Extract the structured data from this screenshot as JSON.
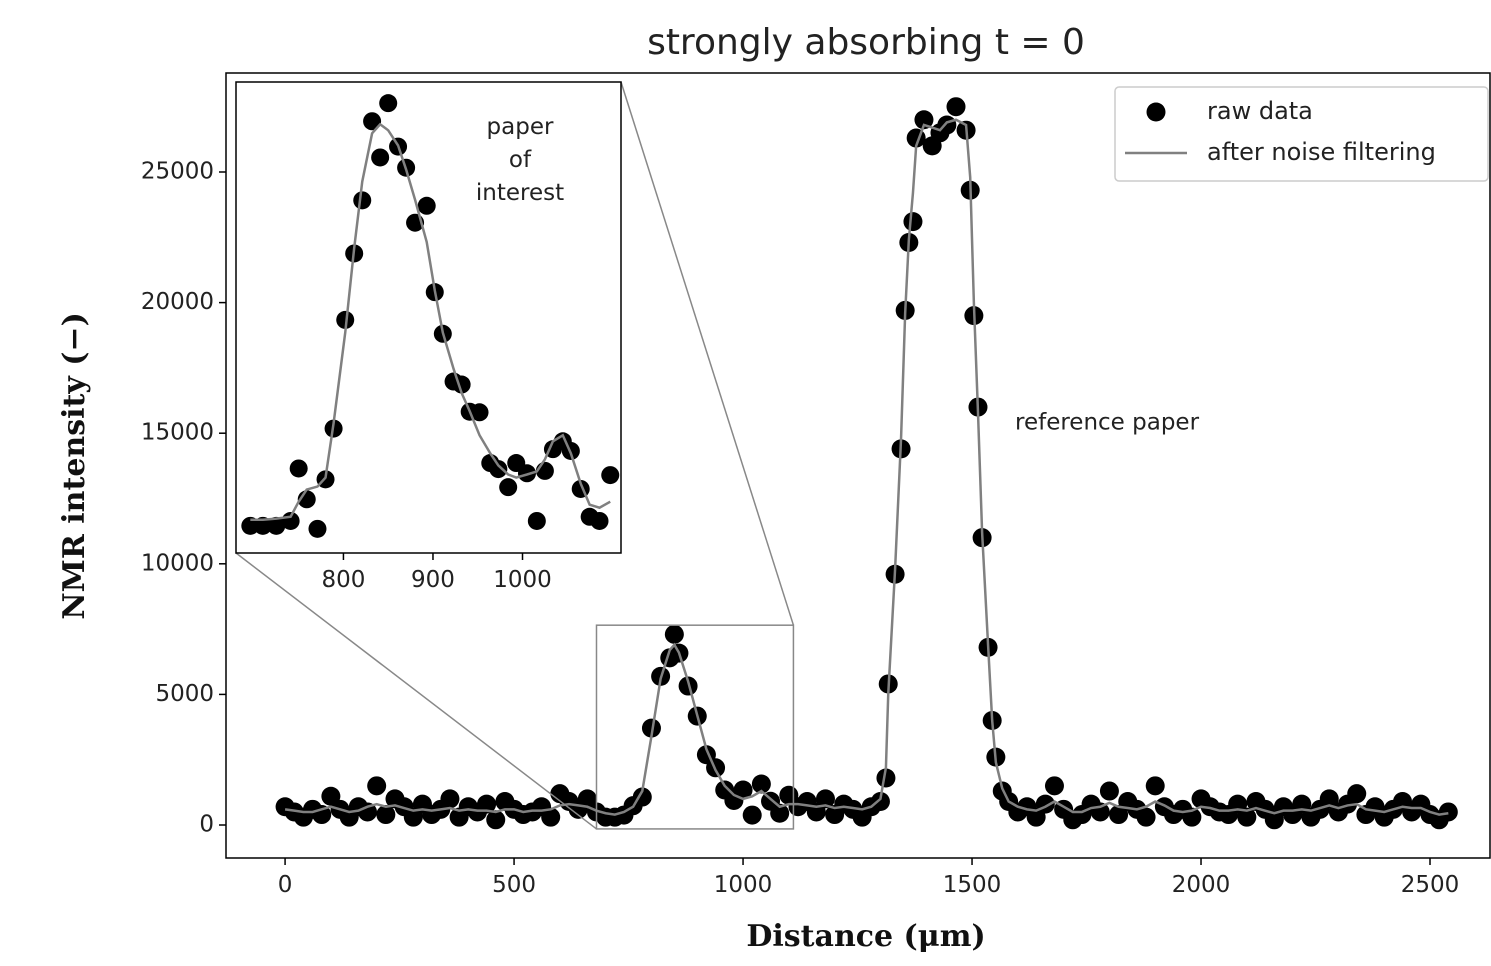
{
  "chart_data": [
    {
      "type": "scatter",
      "title": "strongly absorbing t = 0",
      "x_label": "Distance (μm)",
      "y_label": "NMR intensity (−)",
      "annotation": "reference paper",
      "legend": "upper right",
      "xlim": [
        -129,
        2631
      ],
      "ylim": [
        -1263,
        28790
      ],
      "xticks": [
        0,
        500,
        1000,
        1500,
        2000,
        2500
      ],
      "yticks": [
        0,
        5000,
        10000,
        15000,
        20000,
        25000
      ],
      "x": [
        0,
        20,
        40,
        60,
        80,
        100,
        120,
        140,
        160,
        180,
        200,
        220,
        240,
        260,
        280,
        300,
        320,
        340,
        360,
        380,
        400,
        420,
        440,
        460,
        480,
        500,
        520,
        540,
        560,
        580,
        600,
        620,
        640,
        660,
        680,
        700,
        720,
        740,
        760,
        780,
        800,
        820,
        840,
        850,
        860,
        880,
        900,
        920,
        940,
        960,
        980,
        1000,
        1020,
        1040,
        1060,
        1080,
        1100,
        1120,
        1140,
        1160,
        1180,
        1200,
        1220,
        1240,
        1260,
        1280,
        1300,
        1312,
        1317,
        1332,
        1345,
        1354,
        1362,
        1371,
        1378,
        1395,
        1413,
        1430,
        1445,
        1465,
        1487,
        1496,
        1504,
        1513,
        1522,
        1535,
        1544,
        1552,
        1566,
        1580,
        1600,
        1620,
        1640,
        1660,
        1680,
        1700,
        1720,
        1740,
        1760,
        1780,
        1800,
        1820,
        1840,
        1860,
        1880,
        1900,
        1920,
        1940,
        1960,
        1980,
        2000,
        2020,
        2040,
        2060,
        2080,
        2100,
        2120,
        2140,
        2160,
        2180,
        2200,
        2220,
        2240,
        2260,
        2280,
        2300,
        2320,
        2340,
        2360,
        2380,
        2400,
        2420,
        2440,
        2460,
        2480,
        2500,
        2520,
        2540
      ],
      "series": [
        {
          "name": "raw data",
          "mode": "markers",
          "color": "#000000",
          "values": [
            700,
            500,
            300,
            600,
            400,
            1100,
            600,
            300,
            700,
            500,
            1500,
            400,
            1000,
            700,
            300,
            800,
            400,
            600,
            1000,
            300,
            700,
            500,
            800,
            200,
            900,
            600,
            400,
            500,
            700,
            300,
            1200,
            900,
            600,
            1000,
            500,
            300,
            300,
            380,
            740,
            1070,
            3710,
            5690,
            6400,
            7300,
            6580,
            5320,
            4170,
            2690,
            2190,
            1340,
            940,
            1340,
            380,
            1570,
            910,
            450,
            1140,
            700,
            900,
            500,
            1000,
            400,
            800,
            600,
            300,
            700,
            900,
            1800,
            5400,
            9600,
            14400,
            19700,
            22300,
            23100,
            26300,
            27000,
            26000,
            26500,
            26800,
            27500,
            26600,
            24300,
            19500,
            16000,
            11000,
            6800,
            4000,
            2600,
            1300,
            900,
            500,
            700,
            300,
            800,
            1500,
            600,
            200,
            400,
            800,
            500,
            1300,
            400,
            900,
            600,
            300,
            1500,
            700,
            400,
            600,
            300,
            1000,
            700,
            500,
            400,
            800,
            300,
            900,
            600,
            200,
            700,
            400,
            800,
            300,
            600,
            1000,
            500,
            800,
            1200,
            400,
            700,
            300,
            600,
            900,
            500,
            800,
            400,
            200,
            500
          ]
        },
        {
          "name": "after noise filtering",
          "mode": "line",
          "color": "#808080",
          "values": [
            600,
            550,
            500,
            500,
            600,
            700,
            600,
            500,
            550,
            700,
            800,
            700,
            750,
            650,
            550,
            600,
            550,
            600,
            650,
            550,
            600,
            550,
            550,
            500,
            600,
            600,
            500,
            550,
            550,
            600,
            750,
            800,
            750,
            700,
            550,
            450,
            400,
            500,
            700,
            1300,
            3400,
            5600,
            6700,
            6900,
            6600,
            5500,
            4200,
            2900,
            2100,
            1500,
            1150,
            1000,
            1100,
            1300,
            1000,
            700,
            800,
            800,
            750,
            700,
            750,
            650,
            700,
            650,
            600,
            700,
            1000,
            2200,
            5000,
            9800,
            14800,
            19600,
            22400,
            24200,
            26000,
            26800,
            26700,
            26600,
            26900,
            27000,
            26800,
            24800,
            20000,
            15800,
            11200,
            6900,
            4000,
            2400,
            1400,
            900,
            700,
            600,
            550,
            700,
            900,
            700,
            500,
            500,
            650,
            700,
            850,
            700,
            650,
            600,
            700,
            900,
            750,
            550,
            500,
            550,
            700,
            650,
            550,
            550,
            600,
            550,
            650,
            550,
            450,
            550,
            550,
            600,
            550,
            650,
            750,
            650,
            750,
            800,
            600,
            550,
            500,
            600,
            700,
            650,
            650,
            500,
            400,
            450
          ]
        }
      ]
    },
    {
      "type": "scatter",
      "annotation": "paper\nof\ninterest",
      "xlim": [
        680,
        1110
      ],
      "ylim": [
        -150,
        7650
      ],
      "xticks": [
        800,
        900,
        1000
      ],
      "x": [
        696,
        710,
        725,
        741,
        750,
        759,
        771,
        780,
        789,
        802,
        812,
        821,
        832,
        841,
        850,
        861,
        870,
        880,
        893,
        902,
        911,
        923,
        932,
        941,
        952,
        964,
        973,
        984,
        993,
        1005,
        1016,
        1025,
        1034,
        1045,
        1054,
        1065,
        1075,
        1086,
        1098
      ],
      "series": [
        {
          "mode": "markers",
          "color": "#000000",
          "values": [
            300,
            300,
            300,
            380,
            1250,
            740,
            250,
            1070,
            1910,
            3710,
            4810,
            5690,
            7000,
            6400,
            7300,
            6580,
            6230,
            5320,
            5600,
            4170,
            3480,
            2690,
            2640,
            2190,
            2180,
            1340,
            1240,
            940,
            1340,
            1170,
            380,
            1210,
            1570,
            1700,
            1540,
            910,
            450,
            380,
            1140
          ]
        },
        {
          "mode": "line",
          "color": "#808080",
          "values": [
            400,
            400,
            420,
            450,
            700,
            900,
            950,
            1100,
            2000,
            3500,
            4900,
            6000,
            6800,
            6950,
            6850,
            6600,
            6200,
            5700,
            5000,
            4200,
            3500,
            2900,
            2500,
            2200,
            1800,
            1500,
            1300,
            1150,
            1100,
            1150,
            1200,
            1400,
            1700,
            1800,
            1500,
            1000,
            650,
            600,
            700
          ]
        }
      ]
    }
  ]
}
